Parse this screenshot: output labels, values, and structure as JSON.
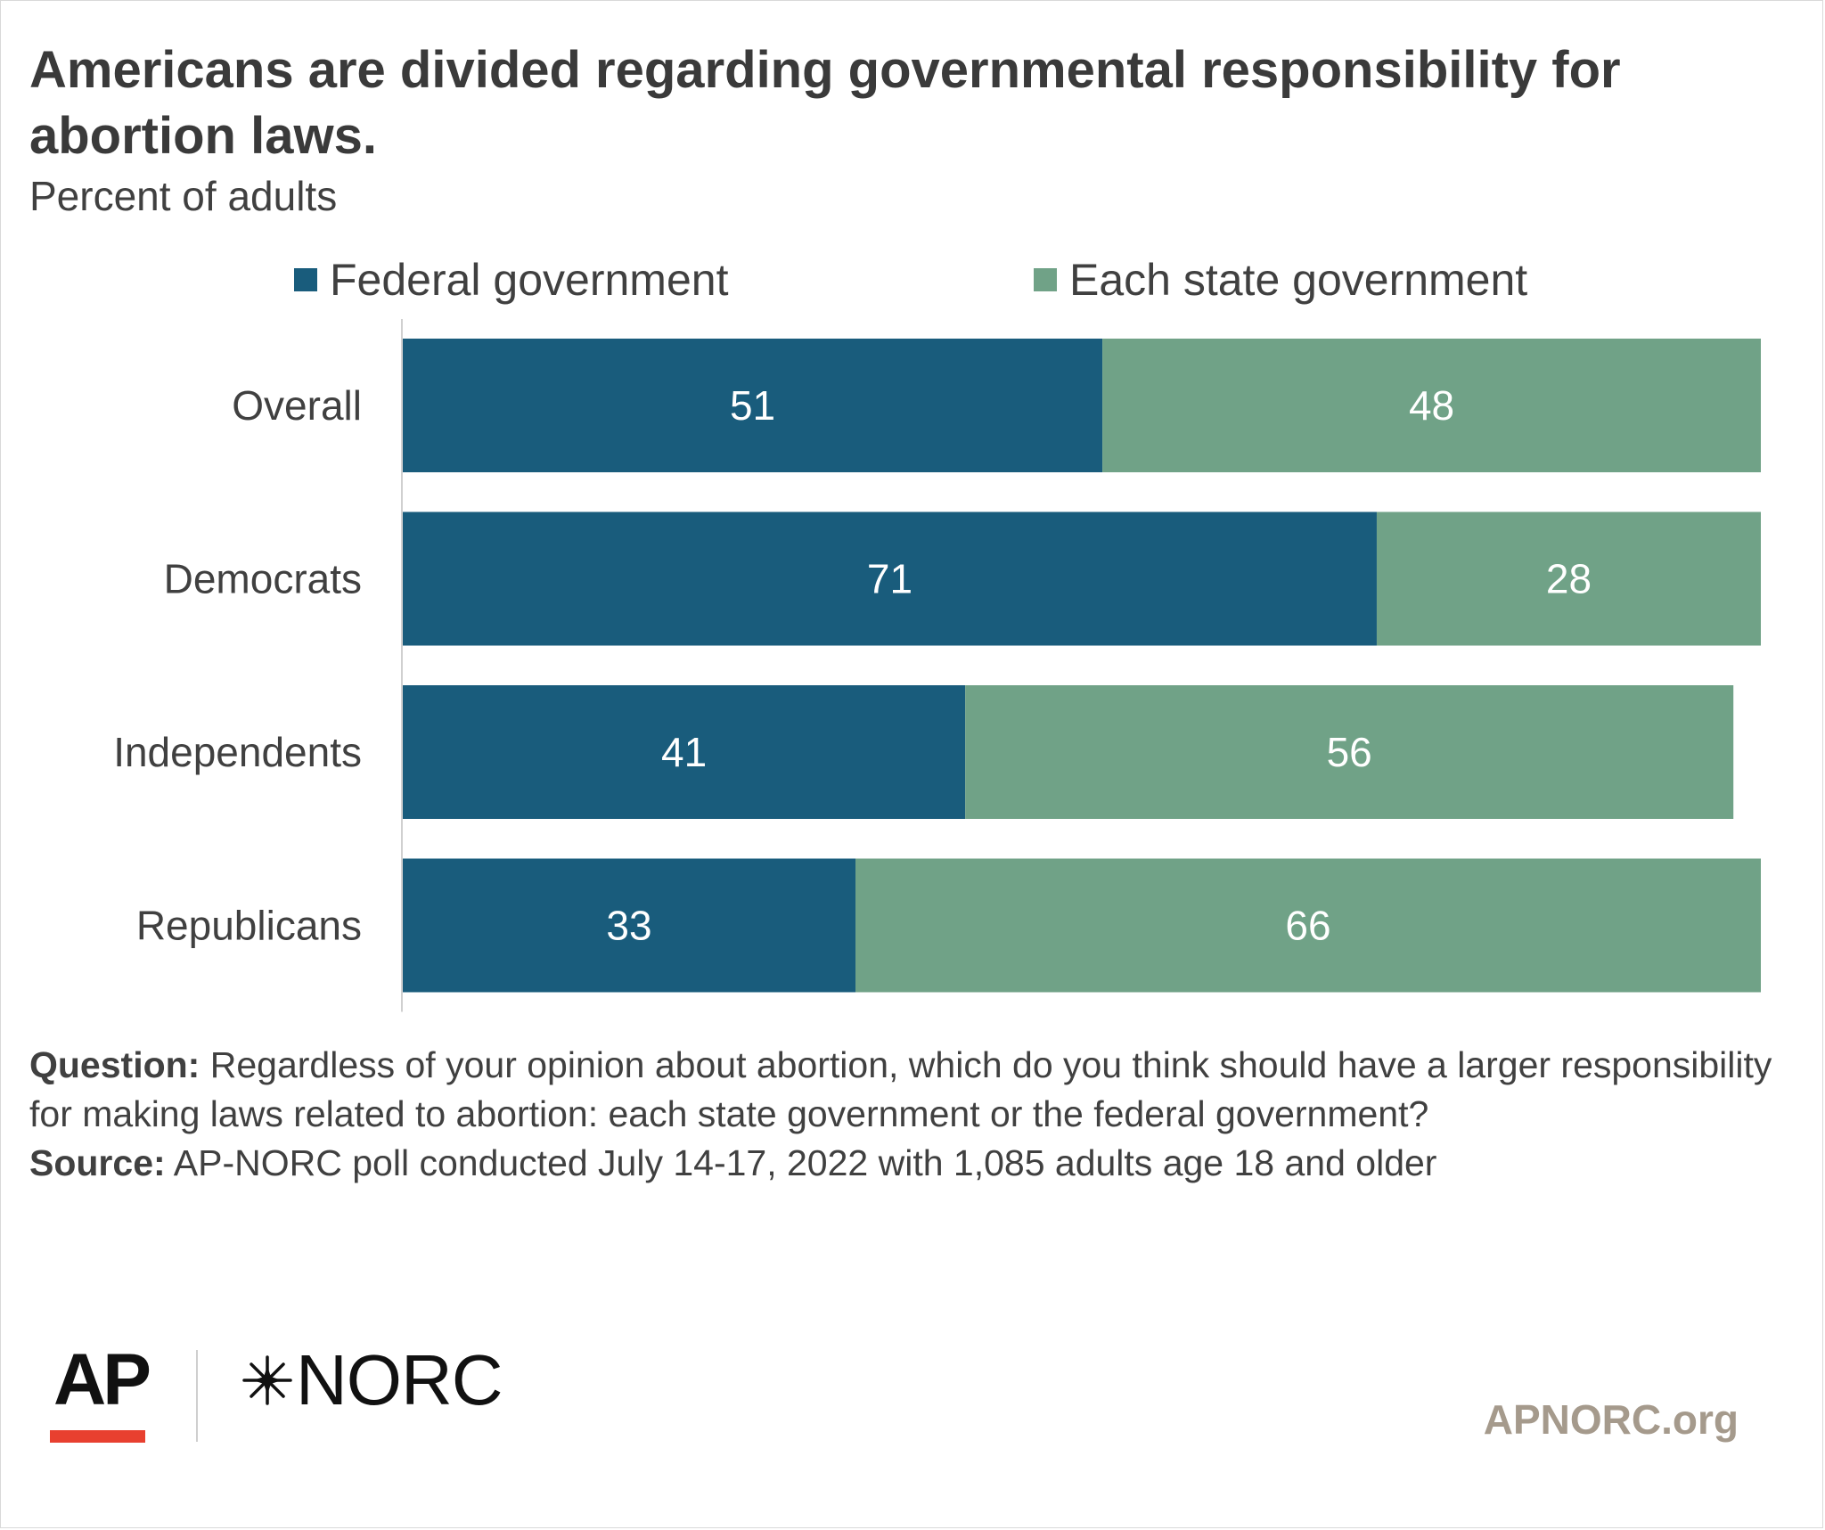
{
  "title": "Americans are divided regarding governmental responsibility for abortion laws.",
  "subtitle": "Percent of adults",
  "colors": {
    "federal": "#195c7c",
    "state": "#70a287",
    "title": "#3a3a3a",
    "text": "#404040",
    "site": "#a59a8c",
    "ap_red": "#e8402f"
  },
  "notes": {
    "question_label": "Question:",
    "question_text": "Regardless of your opinion about abortion, which do you think should have a larger responsibility for making laws related to abortion: each state government or the federal government?",
    "source_label": "Source:",
    "source_text": "AP-NORC poll conducted July 14-17, 2022 with 1,085 adults age 18 and older"
  },
  "logos": {
    "ap": "AP",
    "norc": "NORC",
    "norc_mark": "star-burst-icon"
  },
  "site": "APNORC.org",
  "chart_data": {
    "type": "bar",
    "orientation": "horizontal",
    "stacked": true,
    "categories": [
      "Overall",
      "Democrats",
      "Independents",
      "Republicans"
    ],
    "series": [
      {
        "name": "Federal government",
        "values": [
          51,
          71,
          41,
          33
        ]
      },
      {
        "name": "Each state government",
        "values": [
          48,
          28,
          56,
          66
        ]
      }
    ],
    "xlim": [
      0,
      99
    ],
    "grid": false,
    "legend_position": "top",
    "data_labels": true
  }
}
